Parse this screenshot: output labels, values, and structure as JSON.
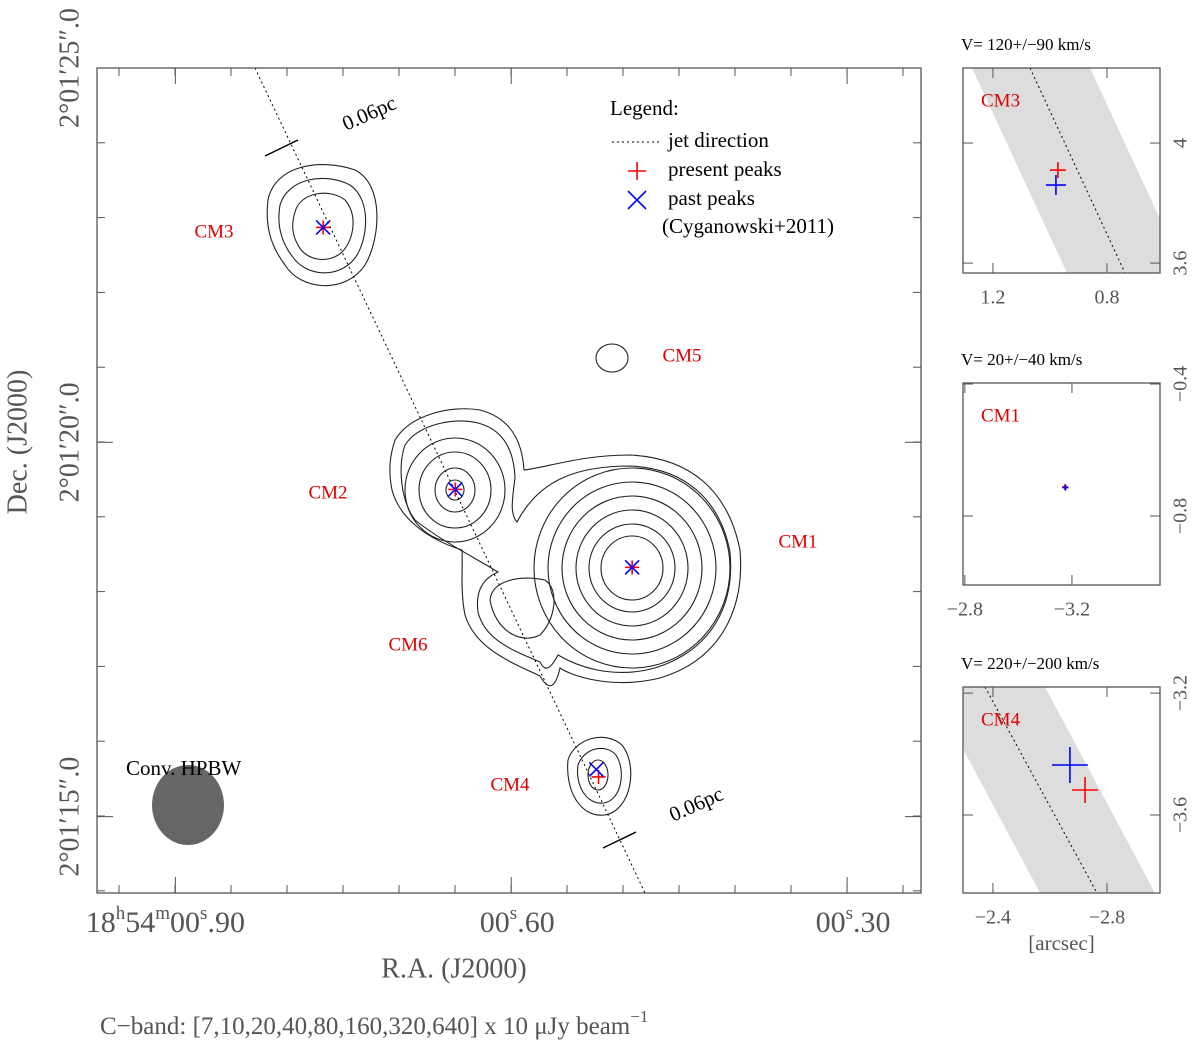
{
  "chart_data": [
    {
      "type": "contour",
      "xlabel": "R.A. (J2000)",
      "ylabel": "Dec. (J2000)",
      "xlim": [
        0.97,
        0.234
      ],
      "ylim": [
        13.98,
        25.0
      ],
      "xticks": [
        {
          "value": 0.9,
          "label": "18h54m00s.90"
        },
        {
          "value": 0.6,
          "label": "00s.60"
        },
        {
          "value": 0.3,
          "label": "00s.30"
        }
      ],
      "yticks": [
        {
          "value": 25.0,
          "label": "2°01′25″.0"
        },
        {
          "value": 20.0,
          "label": "2°01′20″.0"
        },
        {
          "value": 15.0,
          "label": "2°01′15″.0"
        }
      ],
      "legend": {
        "title": "Legend:",
        "line_label": "jet direction",
        "note": "(Cyganowski+2011)"
      },
      "series": [
        {
          "name": "present peaks",
          "color": "#ff0000",
          "marker": "+",
          "x": [
            0.768,
            0.65,
            0.492,
            0.522
          ],
          "y": [
            22.87,
            19.37,
            18.33,
            15.53
          ]
        },
        {
          "name": "past peaks",
          "color": "#0000ff",
          "marker": "x",
          "x": [
            0.768,
            0.65,
            0.492,
            0.524
          ],
          "y": [
            22.87,
            19.37,
            18.33,
            15.63
          ]
        }
      ],
      "source_labels": [
        "CM3",
        "CM5",
        "CM2",
        "CM1",
        "CM6",
        "CM4"
      ],
      "beam_label": "Conv. HPBW",
      "scale_label": "0.06pc",
      "caption": {
        "text": "C−band: [7,10,20,40,80,160,320,640] x 10 μJy beam",
        "superscript": "−1"
      }
    },
    {
      "type": "scatter",
      "title": "V= 120+/−90 km/s",
      "label": "CM3",
      "xlim": [
        1.305,
        0.614
      ],
      "ylim": [
        3.567,
        4.25
      ],
      "xticks": [
        1.2,
        0.8
      ],
      "yticks": [
        4,
        3.6
      ],
      "series": [
        {
          "color": "#ff0000",
          "x": [
            0.972
          ],
          "y": [
            3.91
          ]
        },
        {
          "color": "#0000ff",
          "x": [
            0.979
          ],
          "y": [
            3.86
          ]
        }
      ]
    },
    {
      "type": "scatter",
      "title": "V= 20+/−40 km/s",
      "label": "CM1",
      "xlim": [
        -2.793,
        -3.529
      ],
      "ylim": [
        -1.009,
        -0.397
      ],
      "xticks": [
        {
          "value": -2.8,
          "label": "−2.8"
        },
        {
          "value": -3.2,
          "label": "−3.2"
        }
      ],
      "yticks": [
        {
          "value": -0.4,
          "label": "−0.4"
        },
        {
          "value": -0.8,
          "label": "−0.8"
        }
      ],
      "series": [
        {
          "color": "#ff0000",
          "x": [
            -3.174
          ],
          "y": [
            -0.712
          ]
        },
        {
          "color": "#0000ff",
          "x": [
            -3.176
          ],
          "y": [
            -0.714
          ]
        }
      ]
    },
    {
      "type": "scatter",
      "title": "V= 220+/−200 km/s",
      "label": "CM4",
      "xlabel": "[arcsec]",
      "xlim": [
        -2.295,
        -2.986
      ],
      "ylim": [
        -3.856,
        -3.18
      ],
      "xticks": [
        {
          "value": -2.4,
          "label": "−2.4"
        },
        {
          "value": -2.8,
          "label": "−2.8"
        }
      ],
      "yticks": [
        {
          "value": -3.2,
          "label": "−3.2"
        },
        {
          "value": -3.6,
          "label": "−3.6"
        }
      ],
      "series": [
        {
          "color": "#ff0000",
          "x": [
            -2.723
          ],
          "y": [
            -3.518
          ]
        },
        {
          "color": "#0000ff",
          "x": [
            -2.67
          ],
          "y": [
            -3.436
          ]
        }
      ]
    }
  ]
}
